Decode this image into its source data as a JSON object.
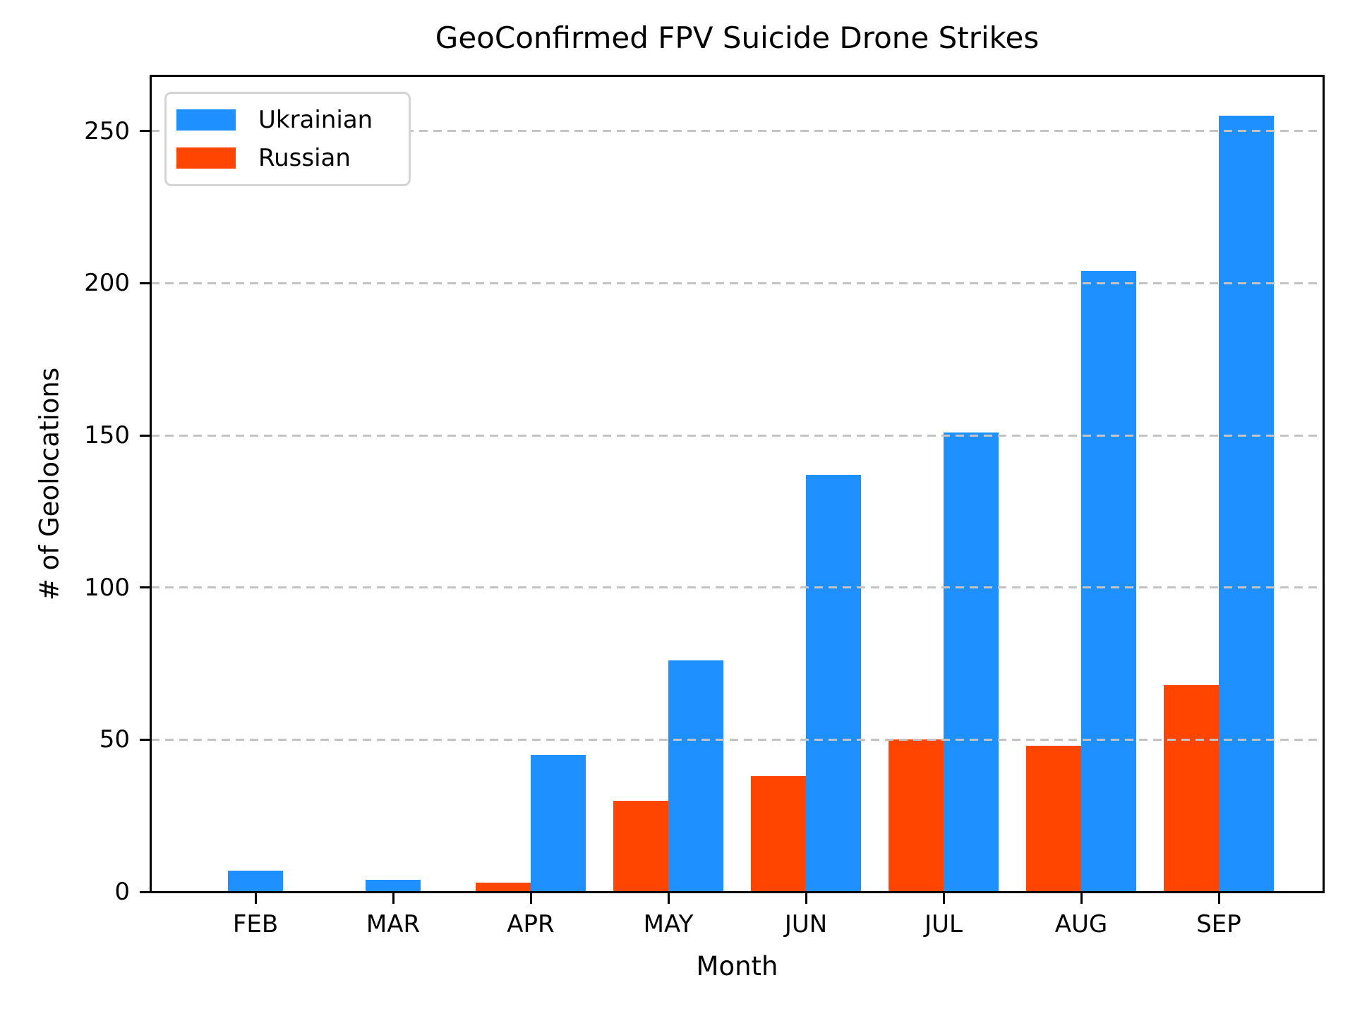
{
  "chart_data": {
    "type": "bar",
    "title": "GeoConfirmed FPV Suicide Drone Strikes",
    "xlabel": "Month",
    "ylabel": "# of Geolocations",
    "categories": [
      "FEB",
      "MAR",
      "APR",
      "MAY",
      "JUN",
      "JUL",
      "AUG",
      "SEP"
    ],
    "series": [
      {
        "name": "Ukrainian",
        "color": "#1E90FF",
        "values": [
          7,
          4,
          45,
          76,
          137,
          151,
          204,
          255
        ]
      },
      {
        "name": "Russian",
        "color": "#FF4500",
        "values": [
          null,
          null,
          3,
          30,
          38,
          50,
          48,
          68
        ]
      }
    ],
    "yticks": [
      0,
      50,
      100,
      150,
      200,
      250
    ],
    "ylim": [
      0,
      268
    ],
    "grid": "horizontal-dashed-on-top-of-bars",
    "legend_position": "upper-left",
    "legend_entries": [
      "Ukrainian",
      "Russian"
    ]
  }
}
